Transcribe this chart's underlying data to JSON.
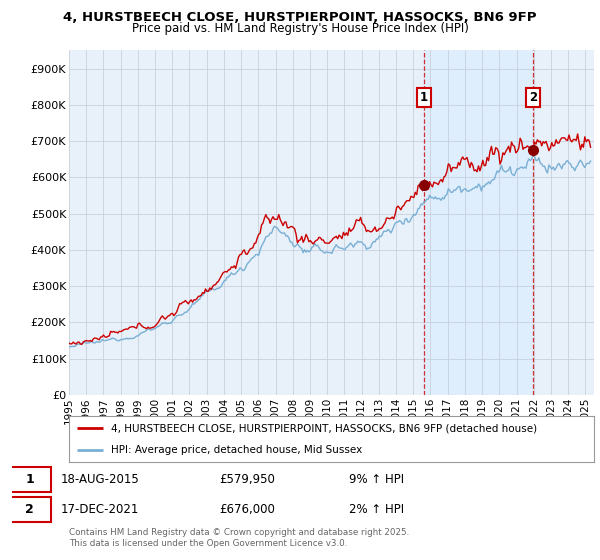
{
  "title1": "4, HURSTBEECH CLOSE, HURSTPIERPOINT, HASSOCKS, BN6 9FP",
  "title2": "Price paid vs. HM Land Registry's House Price Index (HPI)",
  "xlim_start": 1995.0,
  "xlim_end": 2025.5,
  "ylim": [
    0,
    950000
  ],
  "yticks": [
    0,
    100000,
    200000,
    300000,
    400000,
    500000,
    600000,
    700000,
    800000,
    900000
  ],
  "ytick_labels": [
    "£0",
    "£100K",
    "£200K",
    "£300K",
    "£400K",
    "£500K",
    "£600K",
    "£700K",
    "£800K",
    "£900K"
  ],
  "sale1_x": 2015.63,
  "sale1_y": 579950,
  "sale2_x": 2021.96,
  "sale2_y": 676000,
  "legend_line1": "4, HURSTBEECH CLOSE, HURSTPIERPOINT, HASSOCKS, BN6 9FP (detached house)",
  "legend_line2": "HPI: Average price, detached house, Mid Sussex",
  "footer": "Contains HM Land Registry data © Crown copyright and database right 2025.\nThis data is licensed under the Open Government Licence v3.0.",
  "property_color": "#cc0000",
  "hpi_color": "#7ab0d4",
  "shade_color": "#ddeeff",
  "background_color": "#e8f0fa",
  "plot_bg_color": "#ffffff",
  "grid_color": "#c8d0dc",
  "sale_marker_color": "#880000",
  "label_box_color": "#cc0000"
}
